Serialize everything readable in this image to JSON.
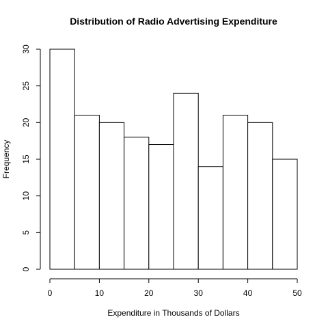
{
  "chart_data": {
    "type": "bar",
    "title": "Distribution of Radio Advertising Expenditure",
    "xlabel": "Expenditure in Thousands of Dollars",
    "ylabel": "Frequency",
    "bins": [
      [
        0,
        5
      ],
      [
        5,
        10
      ],
      [
        10,
        15
      ],
      [
        15,
        20
      ],
      [
        20,
        25
      ],
      [
        25,
        30
      ],
      [
        30,
        35
      ],
      [
        35,
        40
      ],
      [
        40,
        45
      ],
      [
        45,
        50
      ]
    ],
    "values": [
      30,
      21,
      20,
      18,
      17,
      24,
      14,
      21,
      20,
      15
    ],
    "xlim": [
      0,
      50
    ],
    "ylim": [
      0,
      30
    ],
    "x_ticks": [
      0,
      10,
      20,
      30,
      40,
      50
    ],
    "y_ticks": [
      0,
      5,
      10,
      15,
      20,
      25,
      30
    ],
    "grid": false,
    "legend": "none",
    "colors": {
      "bar_fill": "#ffffff",
      "bar_stroke": "#000000",
      "background": "#ffffff"
    }
  }
}
